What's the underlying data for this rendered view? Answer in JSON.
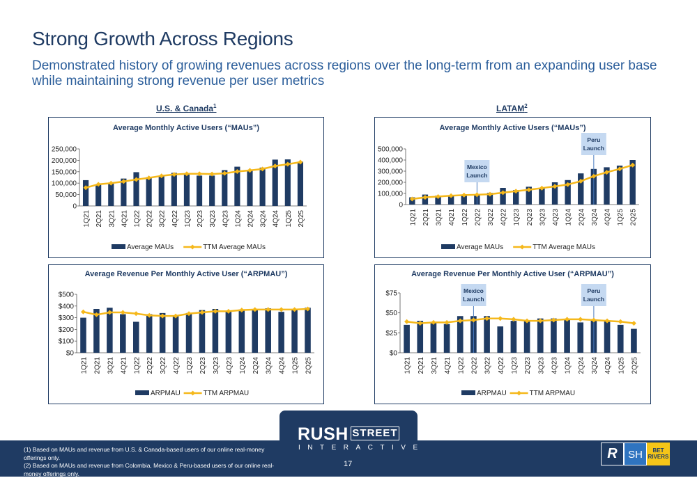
{
  "slide": {
    "title": "Strong Growth Across Regions",
    "subtitle": "Demonstrated history of growing revenues across regions over the long-term from an expanding user base while maintaining strong revenue per user metrics",
    "us_heading": "U.S. & Canada",
    "us_heading_sup": "1",
    "latam_heading": "LATAM",
    "latam_heading_sup": "2",
    "footnote_1": "(1) Based on MAUs and revenue from U.S. & Canada-based users of our online real-money offerings only.",
    "footnote_2": "(2) Based on MAUs and revenue from Colombia, Mexico & Peru-based users of our online real-money offerings only.",
    "page_number": "17",
    "logo_word_1": "RUSH",
    "logo_word_2": "STREET",
    "logo_word_3": "INTERACTIVE",
    "brand_sh": "SH",
    "brand_bet": "BET RIVERS"
  },
  "colors": {
    "bar": "#1f3b63",
    "line": "#f5b81b",
    "title": "#1f3b63",
    "subtitle": "#2a5d9a",
    "callout": "#c5d9f1"
  },
  "chart_data": [
    {
      "type": "bar",
      "title": "Average Monthly Active Users (“MAUs”)",
      "categories": [
        "1Q21",
        "2Q21",
        "3Q21",
        "4Q21",
        "1Q22",
        "2Q22",
        "3Q22",
        "4Q22",
        "1Q23",
        "2Q23",
        "3Q23",
        "4Q23",
        "1Q24",
        "2Q24",
        "3Q24",
        "4Q24",
        "1Q25",
        "2Q25"
      ],
      "series": [
        {
          "name": "Average MAUs",
          "kind": "bar",
          "values": [
            113000,
            95000,
            100000,
            120000,
            148000,
            126000,
            133000,
            145000,
            142000,
            133000,
            133000,
            157000,
            172000,
            157000,
            168000,
            203000,
            204000,
            194000
          ]
        },
        {
          "name": "TTM Average MAUs",
          "kind": "line",
          "values": [
            80000,
            95000,
            100000,
            107000,
            116000,
            123000,
            132000,
            138000,
            141000,
            141000,
            140000,
            143000,
            151000,
            156000,
            162000,
            175000,
            183000,
            192000
          ]
        }
      ],
      "ylim": [
        0,
        250000
      ],
      "yticks": [
        0,
        50000,
        100000,
        150000,
        200000,
        250000
      ],
      "yticklabels": [
        "0",
        "50,000",
        "100,000",
        "150,000",
        "200,000",
        "250,000"
      ],
      "legend": "bottom",
      "callouts": []
    },
    {
      "type": "bar",
      "title": "Average Monthly Active Users (“MAUs”)",
      "categories": [
        "1Q21",
        "2Q21",
        "3Q21",
        "4Q21",
        "1Q22",
        "2Q22",
        "3Q22",
        "4Q22",
        "1Q23",
        "2Q23",
        "3Q23",
        "4Q23",
        "1Q24",
        "2Q24",
        "3Q24",
        "4Q24",
        "1Q25",
        "2Q25"
      ],
      "series": [
        {
          "name": "Average MAUs",
          "kind": "bar",
          "values": [
            65000,
            90000,
            80000,
            85000,
            90000,
            90000,
            105000,
            150000,
            130000,
            160000,
            150000,
            200000,
            220000,
            280000,
            320000,
            335000,
            350000,
            400000
          ]
        },
        {
          "name": "TTM Average MAUs",
          "kind": "line",
          "values": [
            50000,
            65000,
            72000,
            80000,
            85000,
            88000,
            93000,
            107000,
            120000,
            133000,
            148000,
            163000,
            180000,
            210000,
            255000,
            290000,
            320000,
            355000
          ]
        }
      ],
      "ylim": [
        0,
        500000
      ],
      "yticks": [
        0,
        100000,
        200000,
        300000,
        400000,
        500000
      ],
      "yticklabels": [
        "0",
        "100,000",
        "200,000",
        "300,000",
        "400,000",
        "500,000"
      ],
      "legend": "bottom",
      "callouts": [
        {
          "label_1": "Mexico",
          "label_2": "Launch",
          "index": 5
        },
        {
          "label_1": "Peru",
          "label_2": "Launch",
          "index": 14
        }
      ]
    },
    {
      "type": "bar",
      "title": "Average Revenue Per Monthly Active User (“ARPMAU”)",
      "categories": [
        "1Q21",
        "2Q21",
        "3Q21",
        "4Q21",
        "1Q22",
        "2Q22",
        "3Q22",
        "4Q22",
        "1Q23",
        "2Q23",
        "3Q23",
        "4Q23",
        "1Q24",
        "2Q24",
        "3Q24",
        "4Q24",
        "1Q25",
        "2Q25"
      ],
      "series": [
        {
          "name": "ARPMAU",
          "kind": "bar",
          "values": [
            300,
            375,
            385,
            330,
            265,
            330,
            340,
            320,
            340,
            365,
            375,
            360,
            370,
            375,
            380,
            350,
            375,
            385
          ]
        },
        {
          "name": "TTM ARPMAU",
          "kind": "line",
          "values": [
            350,
            325,
            345,
            345,
            335,
            320,
            315,
            315,
            335,
            345,
            355,
            355,
            365,
            370,
            370,
            370,
            370,
            375
          ]
        }
      ],
      "ylim": [
        0,
        500
      ],
      "yticks": [
        0,
        100,
        200,
        300,
        400,
        500
      ],
      "yticklabels": [
        "$0",
        "$100",
        "$200",
        "$300",
        "$400",
        "$500"
      ],
      "legend": "bottom",
      "callouts": []
    },
    {
      "type": "bar",
      "title": "Average Revenue Per Monthly Active User (“ARPMAU”)",
      "categories": [
        "1Q21",
        "2Q21",
        "3Q21",
        "4Q21",
        "1Q22",
        "2Q22",
        "3Q22",
        "4Q22",
        "1Q23",
        "2Q23",
        "3Q23",
        "4Q23",
        "1Q24",
        "2Q24",
        "3Q24",
        "4Q24",
        "1Q25",
        "2Q25"
      ],
      "series": [
        {
          "name": "ARPMAU",
          "kind": "bar",
          "values": [
            35,
            40,
            38,
            36,
            46,
            46,
            46,
            33,
            40,
            40,
            43,
            43,
            42,
            38,
            41,
            40,
            35,
            30
          ]
        },
        {
          "name": "TTM ARPMAU",
          "kind": "line",
          "values": [
            39,
            37,
            38,
            38,
            40,
            41,
            43,
            43,
            42,
            40,
            40,
            41,
            42,
            42,
            41,
            40,
            39,
            37
          ]
        }
      ],
      "ylim": [
        0,
        75
      ],
      "yticks": [
        0,
        25,
        50,
        75
      ],
      "yticklabels": [
        "$0",
        "$25",
        "$50",
        "$75"
      ],
      "legend": "bottom",
      "callouts": [
        {
          "label_1": "Mexico",
          "label_2": "Launch",
          "index": 5
        },
        {
          "label_1": "Peru",
          "label_2": "Launch",
          "index": 14
        }
      ]
    }
  ]
}
